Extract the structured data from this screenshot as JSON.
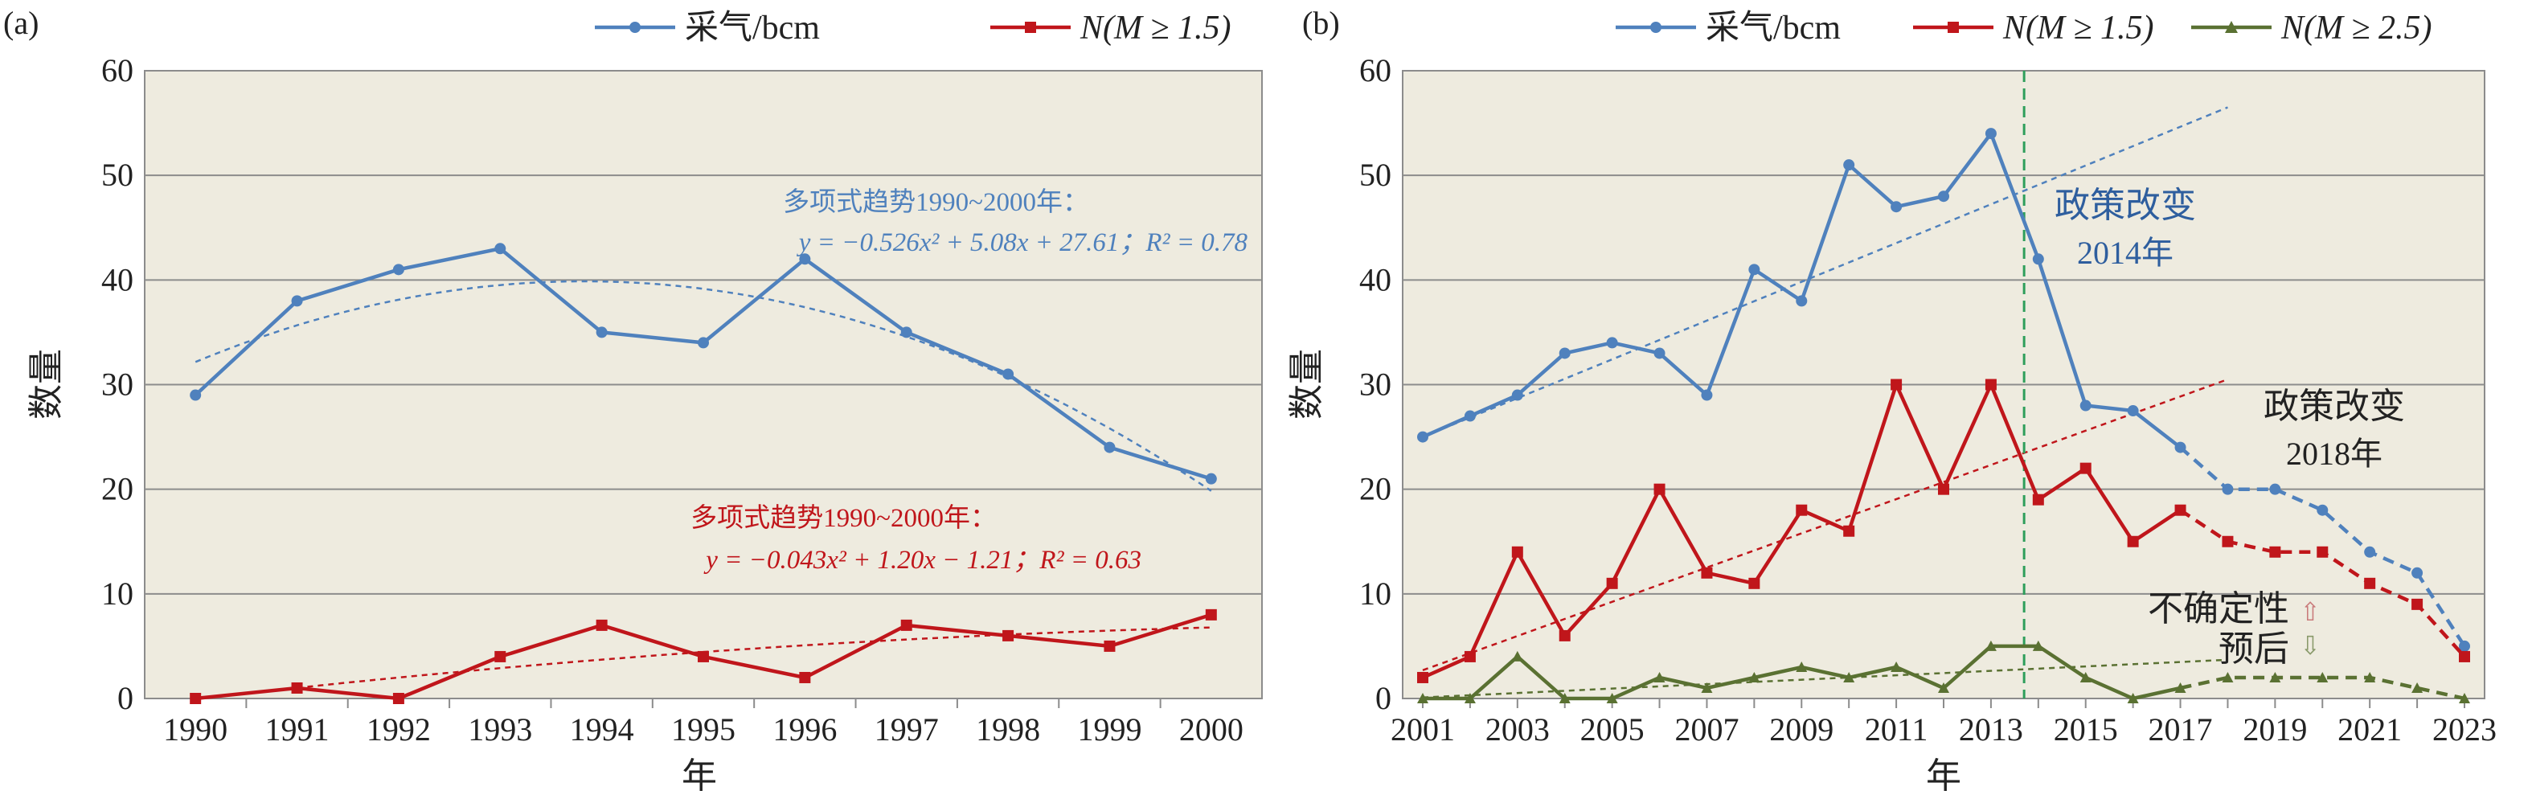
{
  "chart_data": [
    {
      "panel": "(a)",
      "type": "line",
      "xlabel": "年",
      "ylabel": "数量",
      "ylim": [
        0,
        60
      ],
      "yticks": [
        0,
        10,
        20,
        30,
        40,
        50,
        60
      ],
      "x": [
        1990,
        1991,
        1992,
        1993,
        1994,
        1995,
        1996,
        1997,
        1998,
        1999,
        2000
      ],
      "grid": true,
      "legend_position": "top",
      "plot_background": "#eeebdf",
      "series": [
        {
          "name": "采气/bcm",
          "color": "#4f81bd",
          "marker": "circle",
          "values": [
            29,
            38,
            41,
            43,
            35,
            34,
            42,
            35,
            31,
            24,
            21
          ]
        },
        {
          "name": "N(M ≥ 1.5)",
          "color": "#c0161b",
          "marker": "square",
          "values": [
            0,
            1,
            0,
            4,
            7,
            4,
            2,
            7,
            6,
            5,
            8
          ]
        }
      ],
      "trends": [
        {
          "color": "#4f81bd",
          "x_start": 1990,
          "x_end": 2000,
          "coeffs": [
            -0.526,
            5.08,
            27.61
          ],
          "label_line1": "多项式趋势1990~2000年：",
          "label_line2": "y = −0.526x² + 5.08x + 27.61；R² = 0.78"
        },
        {
          "color": "#c0161b",
          "x_start": 1991,
          "x_end": 2000,
          "coeffs": [
            -0.043,
            1.2,
            -1.21
          ],
          "label_line1": "多项式趋势1990~2000年：",
          "label_line2": "y = −0.043x² + 1.20x − 1.21；R² = 0.63"
        }
      ]
    },
    {
      "panel": "(b)",
      "type": "line",
      "xlabel": "年",
      "ylabel": "数量",
      "ylim": [
        0,
        60
      ],
      "yticks": [
        0,
        10,
        20,
        30,
        40,
        50,
        60
      ],
      "xlim": [
        2001,
        2023
      ],
      "xticks": [
        2001,
        2003,
        2005,
        2007,
        2009,
        2011,
        2013,
        2015,
        2017,
        2019,
        2021,
        2023
      ],
      "grid": true,
      "legend_position": "top",
      "plot_background": "#eeebdf",
      "series": [
        {
          "name": "采气/bcm",
          "color": "#4f81bd",
          "marker": "circle",
          "x": [
            2001,
            2002,
            2003,
            2004,
            2005,
            2006,
            2007,
            2008,
            2009,
            2010,
            2011,
            2012,
            2013,
            2014,
            2015,
            2016,
            2017
          ],
          "values": [
            25,
            27,
            29,
            33,
            34,
            33,
            29,
            41,
            38,
            51,
            47,
            48,
            54,
            42,
            28,
            27.5,
            24
          ],
          "forecast_x": [
            2017,
            2018,
            2019,
            2020,
            2021,
            2022,
            2023
          ],
          "forecast_values": [
            24,
            20,
            20,
            18,
            14,
            12,
            5
          ]
        },
        {
          "name": "N(M ≥ 1.5)",
          "color": "#c0161b",
          "marker": "square",
          "x": [
            2001,
            2002,
            2003,
            2004,
            2005,
            2006,
            2007,
            2008,
            2009,
            2010,
            2011,
            2012,
            2013,
            2014,
            2015,
            2016,
            2017
          ],
          "values": [
            2,
            4,
            14,
            6,
            11,
            20,
            12,
            11,
            18,
            16,
            30,
            20,
            30,
            19,
            22,
            15,
            18
          ],
          "forecast_x": [
            2017,
            2018,
            2019,
            2020,
            2021,
            2022,
            2023
          ],
          "forecast_values": [
            18,
            15,
            14,
            14,
            11,
            9,
            4
          ]
        },
        {
          "name": "N(M ≥ 2.5)",
          "color": "#5a7132",
          "marker": "triangle",
          "x": [
            2001,
            2002,
            2003,
            2004,
            2005,
            2006,
            2007,
            2008,
            2009,
            2010,
            2011,
            2012,
            2013,
            2014,
            2015,
            2016,
            2017
          ],
          "values": [
            0,
            0,
            4,
            0,
            0,
            2,
            1,
            2,
            3,
            2,
            3,
            1,
            5,
            5,
            2,
            0,
            1
          ],
          "forecast_x": [
            2017,
            2018,
            2019,
            2020,
            2021,
            2022,
            2023
          ],
          "forecast_values": [
            1,
            2,
            2,
            2,
            2,
            1,
            0
          ]
        }
      ],
      "trends": [
        {
          "color": "#4f81bd",
          "x_start": 2001,
          "x_end": 2018,
          "y_start": 25,
          "y_end": 56.5
        },
        {
          "color": "#c0161b",
          "x_start": 2001,
          "x_end": 2018,
          "y_start": 2.7,
          "y_end": 30.5
        },
        {
          "color": "#5a7132",
          "x_start": 2001,
          "x_end": 2018,
          "y_start": 0.1,
          "y_end": 3.7
        }
      ],
      "policy_line": {
        "x": 2013.7,
        "color": "#2e9e5b"
      },
      "annotations": {
        "policy_2014": [
          "政策改变",
          "2014年"
        ],
        "policy_2018": [
          "政策改变",
          "2018年"
        ],
        "uncertain": "不确定性",
        "forecast": "预后",
        "arrow_up": "⇧",
        "arrow_down": "⇩"
      }
    }
  ]
}
